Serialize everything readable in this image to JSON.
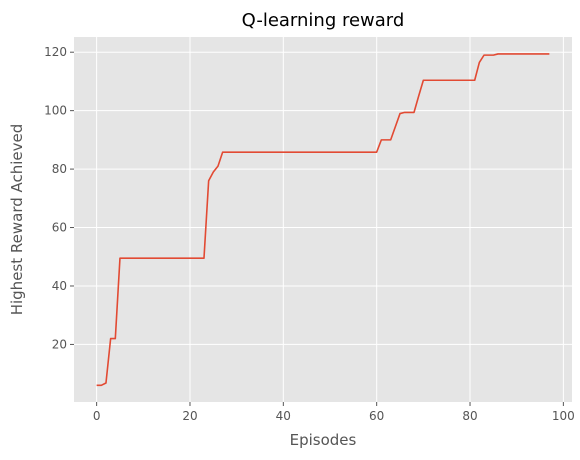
{
  "chart_data": {
    "type": "line",
    "title": "Q-learning reward",
    "xlabel": "Episodes",
    "ylabel": "Highest Reward Achieved",
    "xlim": [
      -4.85,
      101.85
    ],
    "ylim": [
      0.3,
      125.2
    ],
    "xticks": [
      0,
      20,
      40,
      60,
      80,
      100
    ],
    "yticks": [
      20,
      40,
      60,
      80,
      100,
      120
    ],
    "grid": true,
    "colors": {
      "background": "#E5E5E5",
      "grid": "#FFFFFF",
      "line": "#E24A33"
    },
    "series": [
      {
        "x": [
          0,
          1,
          2,
          3,
          4,
          5,
          23,
          24,
          25,
          26,
          27,
          60,
          61,
          62,
          63,
          64,
          65,
          66,
          67,
          68,
          69,
          70,
          71,
          81,
          82,
          83,
          84,
          85,
          86,
          97
        ],
        "y": [
          6,
          6,
          6.8,
          22,
          22,
          49.5,
          49.5,
          76,
          79,
          81,
          85.8,
          85.8,
          90,
          90,
          90,
          94.5,
          99,
          99.4,
          99.4,
          99.4,
          105,
          110.4,
          110.4,
          110.4,
          116.5,
          119,
          119,
          119,
          119.4,
          119.4
        ]
      }
    ]
  }
}
